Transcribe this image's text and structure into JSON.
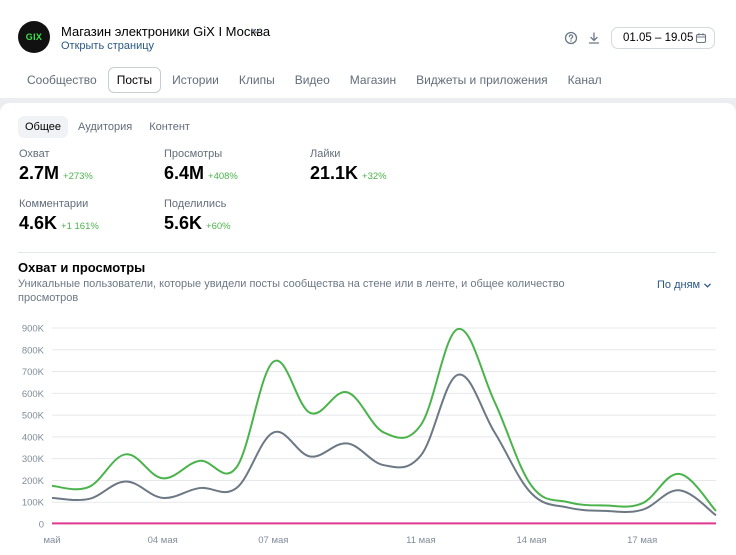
{
  "header": {
    "avatar_text": "GIX",
    "group_name": "Магазин электроники GiX I Москва",
    "open_page": "Открыть страницу",
    "date_range": "01.05 – 19.05"
  },
  "tabs": [
    {
      "label": "Сообщество"
    },
    {
      "label": "Посты",
      "active": true
    },
    {
      "label": "Истории"
    },
    {
      "label": "Клипы"
    },
    {
      "label": "Видео"
    },
    {
      "label": "Магазин"
    },
    {
      "label": "Виджеты и приложения"
    },
    {
      "label": "Канал"
    }
  ],
  "subtabs": [
    {
      "label": "Общее",
      "active": true
    },
    {
      "label": "Аудитория"
    },
    {
      "label": "Контент"
    }
  ],
  "metrics": {
    "reach": {
      "label": "Охват",
      "value": "2.7M",
      "delta": "+273%"
    },
    "views": {
      "label": "Просмотры",
      "value": "6.4M",
      "delta": "+408%"
    },
    "likes": {
      "label": "Лайки",
      "value": "21.1K",
      "delta": "+32%"
    },
    "comments": {
      "label": "Комментарии",
      "value": "4.6K",
      "delta": "+1 161%"
    },
    "shares": {
      "label": "Поделились",
      "value": "5.6K",
      "delta": "+60%"
    }
  },
  "chart_section": {
    "title": "Охват и просмотры",
    "description": "Уникальные пользователи, которые увидели посты сообщества на стене или в ленте, и общее количество просмотров",
    "granularity": "По дням"
  },
  "colors": {
    "green": "#4bb34b",
    "gray": "#6d7885",
    "magenta": "#e0388f",
    "link": "#2a5885"
  },
  "chart_data": {
    "type": "line",
    "x_tick_labels": [
      "май",
      "04 мая",
      "07 мая",
      "11 мая",
      "14 мая",
      "17 мая"
    ],
    "x_tick_days": [
      1,
      4,
      7,
      11,
      14,
      17
    ],
    "y_tick_labels": [
      "0",
      "100K",
      "200K",
      "300K",
      "400K",
      "500K",
      "600K",
      "700K",
      "800K",
      "900K"
    ],
    "ylim": [
      0,
      900000
    ],
    "grid": true,
    "series": [
      {
        "color": "#4bb34b",
        "points": [
          [
            1,
            175000
          ],
          [
            2,
            170000
          ],
          [
            3,
            320000
          ],
          [
            4,
            210000
          ],
          [
            5,
            290000
          ],
          [
            6,
            260000
          ],
          [
            7,
            745000
          ],
          [
            8,
            510000
          ],
          [
            9,
            605000
          ],
          [
            10,
            420000
          ],
          [
            11,
            455000
          ],
          [
            12,
            895000
          ],
          [
            13,
            560000
          ],
          [
            14,
            175000
          ],
          [
            15,
            100000
          ],
          [
            16,
            85000
          ],
          [
            17,
            95000
          ],
          [
            18,
            230000
          ],
          [
            19,
            60000
          ]
        ]
      },
      {
        "color": "#6d7885",
        "points": [
          [
            1,
            120000
          ],
          [
            2,
            115000
          ],
          [
            3,
            195000
          ],
          [
            4,
            120000
          ],
          [
            5,
            165000
          ],
          [
            6,
            165000
          ],
          [
            7,
            420000
          ],
          [
            8,
            310000
          ],
          [
            9,
            370000
          ],
          [
            10,
            270000
          ],
          [
            11,
            315000
          ],
          [
            12,
            685000
          ],
          [
            13,
            420000
          ],
          [
            14,
            140000
          ],
          [
            15,
            75000
          ],
          [
            16,
            60000
          ],
          [
            17,
            65000
          ],
          [
            18,
            155000
          ],
          [
            19,
            40000
          ]
        ]
      },
      {
        "color": "#e0388f",
        "points": [
          [
            1,
            3000
          ],
          [
            2,
            3000
          ],
          [
            3,
            3000
          ],
          [
            4,
            3000
          ],
          [
            5,
            3000
          ],
          [
            6,
            3000
          ],
          [
            7,
            3000
          ],
          [
            8,
            3000
          ],
          [
            9,
            3000
          ],
          [
            10,
            3000
          ],
          [
            11,
            3000
          ],
          [
            12,
            3000
          ],
          [
            13,
            3000
          ],
          [
            14,
            3000
          ],
          [
            15,
            3000
          ],
          [
            16,
            3000
          ],
          [
            17,
            3000
          ],
          [
            18,
            3000
          ],
          [
            19,
            3000
          ]
        ]
      }
    ]
  }
}
